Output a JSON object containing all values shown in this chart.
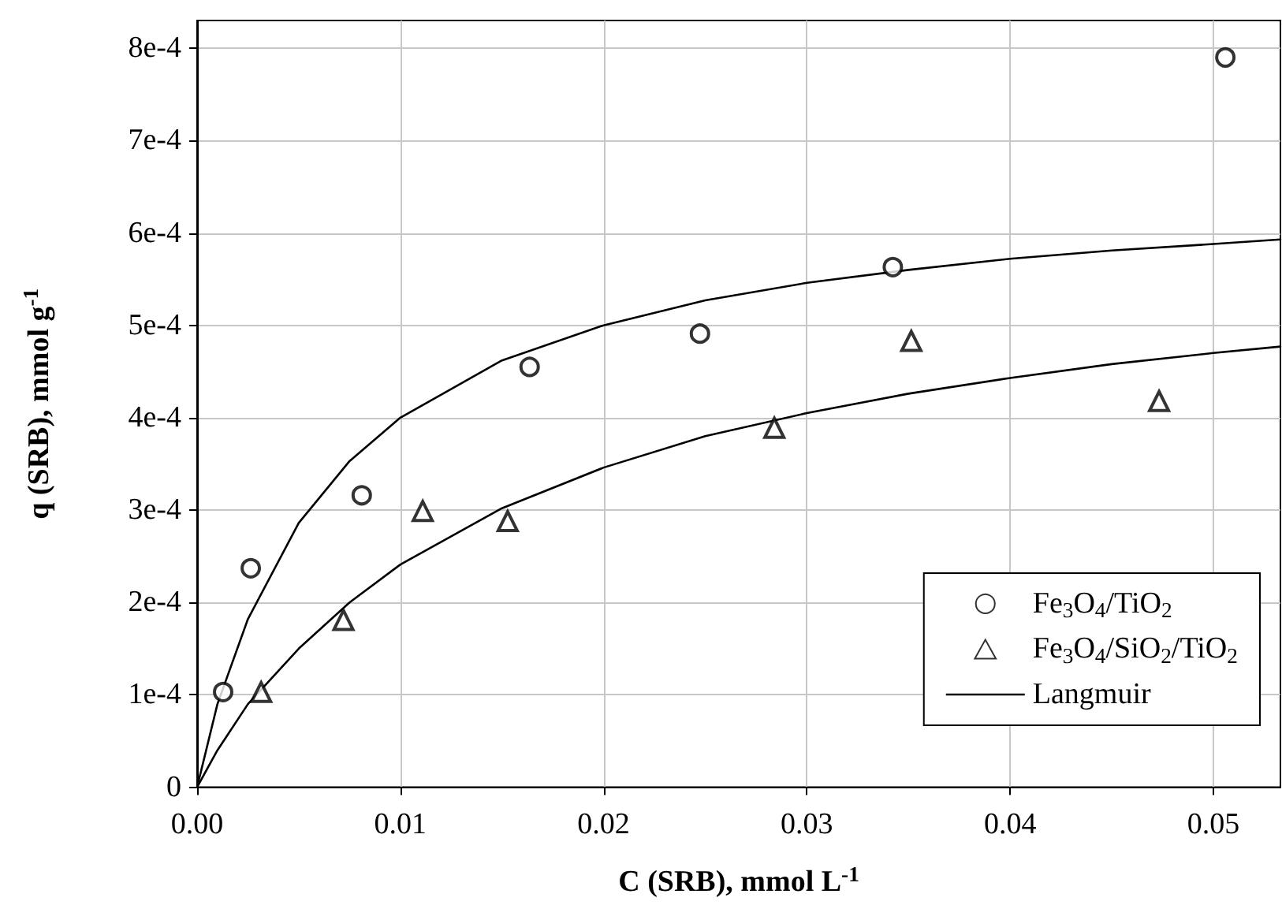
{
  "chart_data": {
    "type": "scatter",
    "xlabel": "C (SRB), mmol L$^{-1}$",
    "ylabel": "q (SRB), mmol g$^{-1}$",
    "xlim": [
      0,
      0.0533
    ],
    "xticks": [
      {
        "value": 0,
        "label": "0.00"
      },
      {
        "value": 0.01,
        "label": "0.01"
      },
      {
        "value": 0.02,
        "label": "0.02"
      },
      {
        "value": 0.03,
        "label": "0.03"
      },
      {
        "value": 0.04,
        "label": "0.04"
      },
      {
        "value": 0.05,
        "label": "0.05"
      }
    ],
    "ylim": [
      0,
      0.00083
    ],
    "yticks": [
      0,
      {
        "value": 0.0001,
        "label": "1e-4"
      },
      {
        "value": 0.0002,
        "label": "2e-4"
      },
      {
        "value": 0.0003,
        "label": "3e-4"
      },
      {
        "value": 0.0004,
        "label": "4e-4"
      },
      {
        "value": 0.0005,
        "label": "5e-4"
      },
      {
        "value": 0.0006,
        "label": "6e-4"
      },
      {
        "value": 0.0007,
        "label": "7e-4"
      },
      {
        "value": 0.0008,
        "label": "8e-4"
      }
    ],
    "grid": true,
    "legend": "bottom right",
    "series": [
      {
        "name": "Fe$_{3}$O$_{4}$/TiO$_{2}$",
        "marker": "circle",
        "color": "#000000",
        "x": [
          0.00128,
          0.00264,
          0.0081,
          0.01636,
          0.02474,
          0.03423,
          0.05059
        ],
        "values": [
          0.000103,
          0.000237,
          0.000316,
          0.000455,
          0.000491,
          0.000563,
          0.00079
        ]
      },
      {
        "name": "Fe$_{3}$O$_{4}$/SiO$_{2}$/TiO$_{2}$",
        "marker": "triangle",
        "color": "#000000",
        "x": [
          0.00315,
          0.0072,
          0.0111,
          0.01528,
          0.0284,
          0.03514,
          0.04733
        ],
        "values": [
          0.000103,
          0.000181,
          0.000299,
          0.000288,
          0.000389,
          0.000483,
          0.000418
        ]
      },
      {
        "name": "Langmuir",
        "type": "line",
        "marker": "none",
        "line_style": "solid",
        "color": "#000000",
        "x": [
          0,
          0.001,
          0.0025,
          0.005,
          0.0075,
          0.01,
          0.015,
          0.02,
          0.025,
          0.03,
          0.035,
          0.04,
          0.045,
          0.05,
          0.0533
        ],
        "values": [
          0,
          9e-05,
          0.000182,
          0.000286,
          0.000353,
          0.0004,
          0.000462,
          0.0005,
          0.000527,
          0.000546,
          0.00056,
          0.000572,
          0.000581,
          0.000588,
          0.000593
        ]
      },
      {
        "type": "line",
        "marker": "none",
        "line_style": "solid",
        "color": "#000000",
        "x": [
          0,
          0.001,
          0.0025,
          0.005,
          0.0075,
          0.01,
          0.015,
          0.02,
          0.025,
          0.03,
          0.035,
          0.04,
          0.045,
          0.05,
          0.0533
        ],
        "values": [
          0,
          4e-05,
          9e-05,
          0.00015,
          0.0002,
          0.000241,
          0.000302,
          0.000346,
          0.00038,
          0.000405,
          0.000426,
          0.000443,
          0.000458,
          0.00047,
          0.000477
        ]
      }
    ]
  }
}
